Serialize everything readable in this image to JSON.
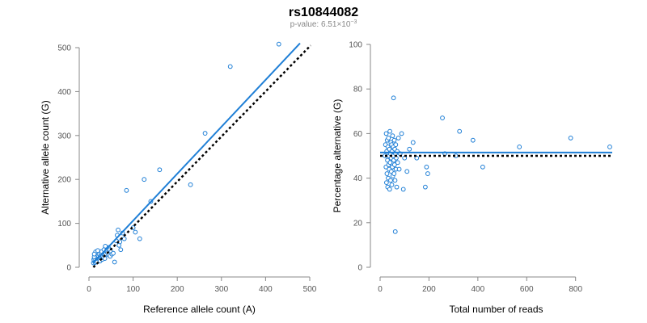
{
  "title": "rs10844082",
  "subtitle_prefix": "p-value: 6.51",
  "subtitle_times": "×",
  "subtitle_base": "10",
  "subtitle_exp": "−3",
  "colors": {
    "points": "#1f7fd6",
    "fit": "#1f7fd6",
    "reference": "#000000",
    "axis": "#888888"
  },
  "chart_data": [
    {
      "type": "scatter",
      "xlabel": "Reference allele count (A)",
      "ylabel": "Alternative allele count (G)",
      "xlim": [
        0,
        500
      ],
      "ylim": [
        0,
        500
      ],
      "xticks": [
        "0",
        "100",
        "200",
        "300",
        "400",
        "500"
      ],
      "yticks": [
        "0",
        "100",
        "200",
        "300",
        "400",
        "500"
      ],
      "grid": false,
      "points": [
        [
          10,
          10
        ],
        [
          12,
          14
        ],
        [
          14,
          11
        ],
        [
          11,
          18
        ],
        [
          15,
          16
        ],
        [
          13,
          20
        ],
        [
          17,
          13
        ],
        [
          16,
          22
        ],
        [
          19,
          17
        ],
        [
          18,
          25
        ],
        [
          12,
          24
        ],
        [
          20,
          15
        ],
        [
          22,
          20
        ],
        [
          21,
          27
        ],
        [
          24,
          18
        ],
        [
          25,
          23
        ],
        [
          23,
          30
        ],
        [
          26,
          26
        ],
        [
          28,
          21
        ],
        [
          30,
          28
        ],
        [
          27,
          33
        ],
        [
          31,
          24
        ],
        [
          33,
          30
        ],
        [
          29,
          36
        ],
        [
          35,
          27
        ],
        [
          36,
          34
        ],
        [
          34,
          40
        ],
        [
          38,
          30
        ],
        [
          40,
          38
        ],
        [
          42,
          33
        ],
        [
          44,
          45
        ],
        [
          37,
          48
        ],
        [
          47,
          40
        ],
        [
          50,
          35
        ],
        [
          15,
          35
        ],
        [
          20,
          38
        ],
        [
          12,
          30
        ],
        [
          18,
          12
        ],
        [
          25,
          14
        ],
        [
          30,
          18
        ],
        [
          33,
          22
        ],
        [
          36,
          20
        ],
        [
          45,
          28
        ],
        [
          48,
          25
        ],
        [
          52,
          30
        ],
        [
          55,
          32
        ],
        [
          58,
          12
        ],
        [
          62,
          60
        ],
        [
          64,
          73
        ],
        [
          66,
          85
        ],
        [
          68,
          50
        ],
        [
          70,
          58
        ],
        [
          72,
          40
        ],
        [
          76,
          78
        ],
        [
          80,
          65
        ],
        [
          85,
          175
        ],
        [
          100,
          90
        ],
        [
          105,
          80
        ],
        [
          115,
          65
        ],
        [
          125,
          200
        ],
        [
          140,
          150
        ],
        [
          160,
          222
        ],
        [
          230,
          188
        ],
        [
          263,
          305
        ],
        [
          320,
          457
        ],
        [
          430,
          508
        ]
      ],
      "fit_line": [
        [
          10,
          10
        ],
        [
          478,
          510
        ]
      ],
      "reference_line": [
        [
          10,
          0
        ],
        [
          502,
          505
        ]
      ]
    },
    {
      "type": "scatter",
      "xlabel": "Total number of reads",
      "ylabel": "Percentage alternative (G)",
      "xlim": [
        0,
        950
      ],
      "ylim": [
        0,
        100
      ],
      "xticks": [
        "0",
        "200",
        "400",
        "600",
        "800"
      ],
      "yticks": [
        "0",
        "20",
        "40",
        "60",
        "80",
        "100"
      ],
      "grid": false,
      "points": [
        [
          20,
          50
        ],
        [
          22,
          55
        ],
        [
          24,
          45
        ],
        [
          25,
          60
        ],
        [
          26,
          38
        ],
        [
          27,
          52
        ],
        [
          28,
          42
        ],
        [
          29,
          57
        ],
        [
          30,
          48
        ],
        [
          31,
          36
        ],
        [
          32,
          54
        ],
        [
          33,
          40
        ],
        [
          34,
          58
        ],
        [
          35,
          46
        ],
        [
          36,
          50
        ],
        [
          37,
          44
        ],
        [
          38,
          53
        ],
        [
          39,
          35
        ],
        [
          40,
          61
        ],
        [
          41,
          47
        ],
        [
          42,
          51
        ],
        [
          43,
          39
        ],
        [
          44,
          56
        ],
        [
          45,
          49
        ],
        [
          46,
          43
        ],
        [
          47,
          55
        ],
        [
          48,
          37
        ],
        [
          49,
          52
        ],
        [
          50,
          45
        ],
        [
          51,
          59
        ],
        [
          52,
          41
        ],
        [
          53,
          50
        ],
        [
          54,
          54
        ],
        [
          55,
          76
        ],
        [
          56,
          48
        ],
        [
          57,
          42
        ],
        [
          58,
          57
        ],
        [
          59,
          46
        ],
        [
          60,
          53
        ],
        [
          61,
          39
        ],
        [
          62,
          16
        ],
        [
          63,
          51
        ],
        [
          64,
          55
        ],
        [
          65,
          44
        ],
        [
          66,
          49
        ],
        [
          68,
          36
        ],
        [
          70,
          52
        ],
        [
          72,
          47
        ],
        [
          75,
          58
        ],
        [
          78,
          44
        ],
        [
          82,
          51
        ],
        [
          88,
          60
        ],
        [
          95,
          35
        ],
        [
          100,
          49
        ],
        [
          110,
          43
        ],
        [
          120,
          53
        ],
        [
          135,
          56
        ],
        [
          150,
          49
        ],
        [
          185,
          36
        ],
        [
          190,
          45
        ],
        [
          195,
          42
        ],
        [
          255,
          67
        ],
        [
          265,
          51
        ],
        [
          310,
          50
        ],
        [
          325,
          61
        ],
        [
          380,
          57
        ],
        [
          420,
          45
        ],
        [
          570,
          54
        ],
        [
          780,
          58
        ],
        [
          940,
          54
        ]
      ],
      "fit_line": [
        [
          0,
          51.5
        ],
        [
          950,
          51.5
        ]
      ],
      "reference_line": [
        [
          0,
          50
        ],
        [
          950,
          50
        ]
      ]
    }
  ]
}
